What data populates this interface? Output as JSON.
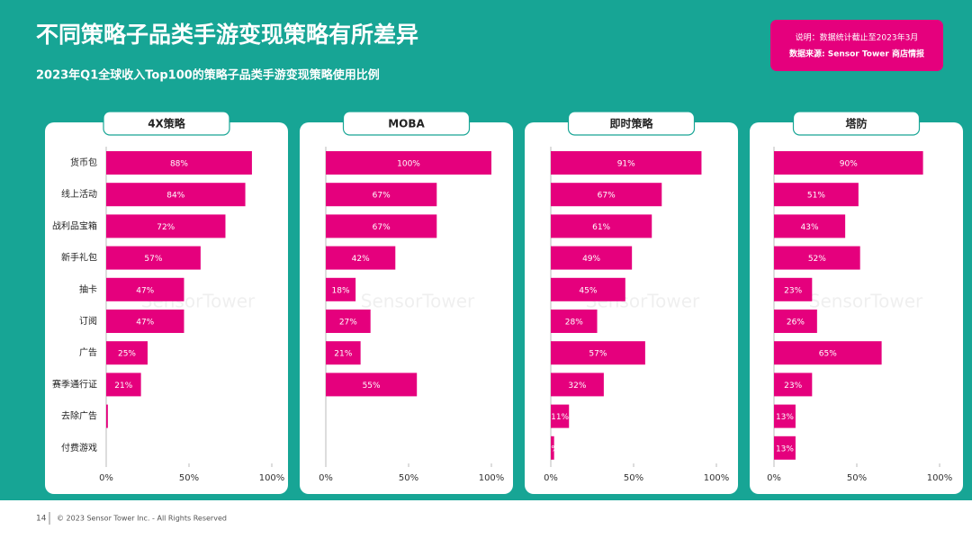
{
  "header": {
    "title": "不同策略子品类手游变现策略有所差异",
    "subtitle": "2023年Q1全球收入Top100的策略子品类手游变现策略使用比例",
    "note": "说明：数据统计截止至2023年3月",
    "source": "数据来源: Sensor Tower 商店情报"
  },
  "watermark": "SensorTower",
  "chart_data": [
    {
      "type": "hbar",
      "title": "4X策略",
      "color": "#e5007d",
      "categories": [
        "货币包",
        "线上活动",
        "战利品宝箱",
        "新手礼包",
        "抽卡",
        "订阅",
        "广告",
        "赛季通行证",
        "去除广告",
        "付费游戏"
      ],
      "values": [
        88,
        84,
        72,
        57,
        47,
        47,
        25,
        21,
        1,
        0
      ],
      "value_labels": [
        "88%",
        "84%",
        "72%",
        "57%",
        "47%",
        "47%",
        "25%",
        "21%",
        null,
        null
      ],
      "xlim": [
        0,
        100
      ],
      "xticks": [
        {
          "value": 0,
          "label": "0%"
        },
        {
          "value": 50,
          "label": "50%"
        },
        {
          "value": 100,
          "label": "100%"
        }
      ]
    },
    {
      "type": "hbar",
      "title": "MOBA",
      "color": "#e5007d",
      "values": [
        100,
        67,
        67,
        42,
        18,
        27,
        21,
        55,
        0,
        0
      ],
      "value_labels": [
        "100%",
        "67%",
        "67%",
        "42%",
        "18%",
        "27%",
        "21%",
        "55%",
        null,
        null
      ],
      "xlim": [
        0,
        100
      ],
      "xticks": [
        {
          "value": 0,
          "label": "0%"
        },
        {
          "value": 50,
          "label": "50%"
        },
        {
          "value": 100,
          "label": "100%"
        }
      ]
    },
    {
      "type": "hbar",
      "title": "即时策略",
      "color": "#e5007d",
      "values": [
        91,
        67,
        61,
        49,
        45,
        28,
        57,
        32,
        11,
        2
      ],
      "value_labels": [
        "91%",
        "67%",
        "61%",
        "49%",
        "45%",
        "28%",
        "57%",
        "32%",
        "11%",
        "2%"
      ],
      "xlim": [
        0,
        100
      ],
      "xticks": [
        {
          "value": 0,
          "label": "0%"
        },
        {
          "value": 50,
          "label": "50%"
        },
        {
          "value": 100,
          "label": "100%"
        }
      ]
    },
    {
      "type": "hbar",
      "title": "塔防",
      "color": "#e5007d",
      "values": [
        90,
        51,
        43,
        52,
        23,
        26,
        65,
        23,
        13,
        13
      ],
      "value_labels": [
        "90%",
        "51%",
        "43%",
        "52%",
        "23%",
        "26%",
        "65%",
        "23%",
        "13%",
        "13%"
      ],
      "xlim": [
        0,
        100
      ],
      "xticks": [
        {
          "value": 0,
          "label": "0%"
        },
        {
          "value": 50,
          "label": "50%"
        },
        {
          "value": 100,
          "label": "100%"
        }
      ]
    }
  ],
  "footer": {
    "page": "14",
    "copyright": "© 2023 Sensor Tower Inc. - All Rights Reserved"
  }
}
